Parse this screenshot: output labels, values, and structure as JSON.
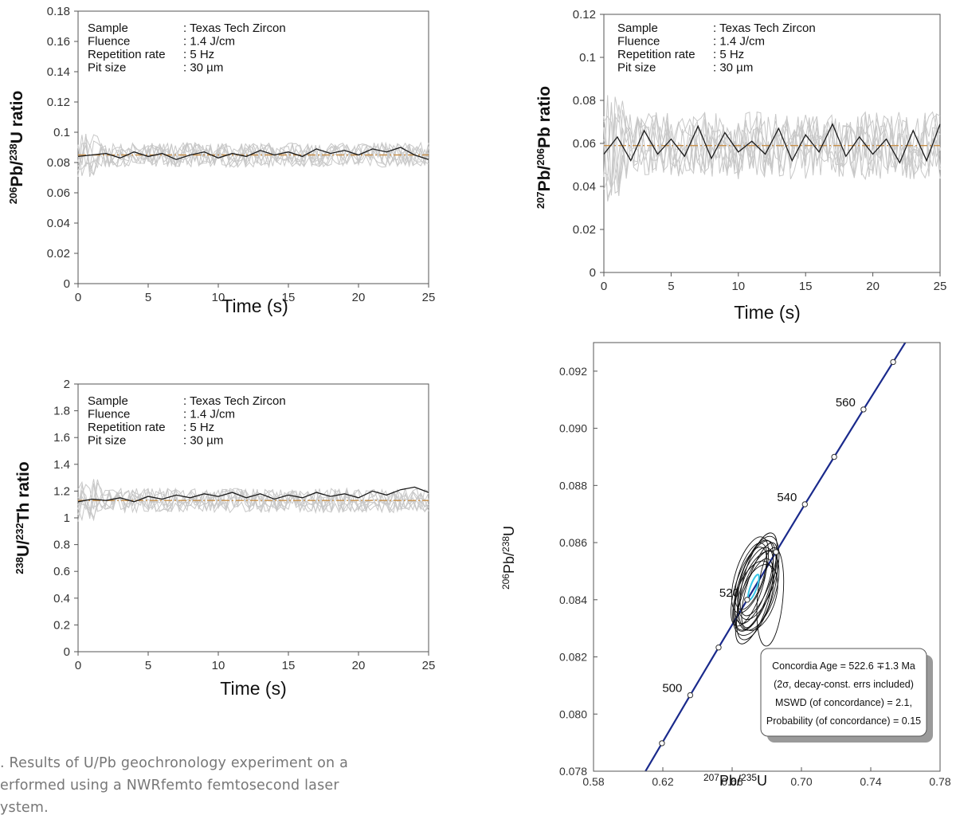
{
  "caption": {
    "lines": [
      ". Results of U/Pb geochronology experiment on a",
      "erformed using a NWRfemto femtosecond laser",
      "ystem."
    ]
  },
  "chart_data": [
    {
      "id": "pb206_u238",
      "type": "line",
      "ylabel": {
        "pre": "206",
        "a": "Pb/",
        "sup": "238",
        "b": "U ratio"
      },
      "xlabel": "Time (s)",
      "xlim": [
        0,
        25
      ],
      "ylim": [
        0,
        0.18
      ],
      "xticks": [
        "0",
        "5",
        "10",
        "15",
        "20",
        "25"
      ],
      "yticks": [
        "0",
        "0.02",
        "0.04",
        "0.06",
        "0.08",
        "0.1",
        "0.12",
        "0.14",
        "0.16",
        "0.18"
      ],
      "reference_value": 0.085,
      "mean_series": {
        "x": [
          0,
          1,
          2,
          3,
          4,
          5,
          6,
          7,
          8,
          9,
          10,
          11,
          12,
          13,
          14,
          15,
          16,
          17,
          18,
          19,
          20,
          21,
          22,
          23,
          24,
          25
        ],
        "y": [
          0.084,
          0.085,
          0.086,
          0.083,
          0.087,
          0.084,
          0.086,
          0.082,
          0.085,
          0.087,
          0.083,
          0.086,
          0.084,
          0.088,
          0.085,
          0.087,
          0.084,
          0.089,
          0.086,
          0.088,
          0.085,
          0.089,
          0.087,
          0.09,
          0.085,
          0.082
        ]
      },
      "info": {
        "rows": [
          {
            "key": "Sample",
            "value": ": Texas Tech Zircon"
          },
          {
            "key": "Fluence",
            "value": ": 1.4 J/cm"
          },
          {
            "key": "Repetition rate",
            "value": ": 5 Hz"
          },
          {
            "key": "Pit size",
            "value": ": 30 µm"
          }
        ]
      },
      "colors": {
        "traces": "#c8c8c8",
        "mean": "#1a1a1a",
        "reference": "#c8904a"
      }
    },
    {
      "id": "pb207_pb206",
      "type": "line",
      "ylabel": {
        "pre": "207",
        "a": "Pb/",
        "sup": "206",
        "b": "Pb ratio"
      },
      "xlabel": "Time (s)",
      "xlim": [
        0,
        25
      ],
      "ylim": [
        0,
        0.12
      ],
      "xticks": [
        "0",
        "5",
        "10",
        "15",
        "20",
        "25"
      ],
      "yticks": [
        "0",
        "0.02",
        "0.04",
        "0.06",
        "0.08",
        "0.1",
        "0.12"
      ],
      "reference_value": 0.059,
      "mean_series": {
        "x": [
          0,
          1,
          2,
          3,
          4,
          5,
          6,
          7,
          8,
          9,
          10,
          11,
          12,
          13,
          14,
          15,
          16,
          17,
          18,
          19,
          20,
          21,
          22,
          23,
          24,
          25
        ],
        "y": [
          0.055,
          0.063,
          0.052,
          0.066,
          0.055,
          0.062,
          0.054,
          0.068,
          0.053,
          0.065,
          0.056,
          0.061,
          0.055,
          0.067,
          0.052,
          0.064,
          0.056,
          0.069,
          0.054,
          0.063,
          0.055,
          0.062,
          0.051,
          0.066,
          0.052,
          0.069
        ]
      },
      "info": {
        "rows": [
          {
            "key": "Sample",
            "value": ": Texas Tech Zircon"
          },
          {
            "key": "Fluence",
            "value": ": 1.4 J/cm"
          },
          {
            "key": "Repetition rate",
            "value": ": 5 Hz"
          },
          {
            "key": "Pit size",
            "value": ": 30 µm"
          }
        ]
      },
      "colors": {
        "traces": "#c8c8c8",
        "mean": "#1a1a1a",
        "reference": "#c8904a"
      }
    },
    {
      "id": "u238_th232",
      "type": "line",
      "ylabel": {
        "pre": "238",
        "a": "U/",
        "sup": "232",
        "b": "Th ratio"
      },
      "xlabel": "Time (s)",
      "xlim": [
        0,
        25
      ],
      "ylim": [
        0,
        2
      ],
      "xticks": [
        "0",
        "5",
        "10",
        "15",
        "20",
        "25"
      ],
      "yticks": [
        "0",
        "0.2",
        "0.4",
        "0.6",
        "0.8",
        "1",
        "1.2",
        "1.4",
        "1.6",
        "1.8",
        "2"
      ],
      "reference_value": 1.13,
      "mean_series": {
        "x": [
          0,
          1,
          2,
          3,
          4,
          5,
          6,
          7,
          8,
          9,
          10,
          11,
          12,
          13,
          14,
          15,
          16,
          17,
          18,
          19,
          20,
          21,
          22,
          23,
          24,
          25
        ],
        "y": [
          1.12,
          1.14,
          1.13,
          1.15,
          1.12,
          1.16,
          1.14,
          1.17,
          1.15,
          1.18,
          1.16,
          1.19,
          1.15,
          1.18,
          1.14,
          1.17,
          1.15,
          1.19,
          1.16,
          1.18,
          1.15,
          1.2,
          1.17,
          1.21,
          1.23,
          1.19
        ]
      },
      "info": {
        "rows": [
          {
            "key": "Sample",
            "value": ": Texas Tech Zircon"
          },
          {
            "key": "Fluence",
            "value": ": 1.4 J/cm"
          },
          {
            "key": "Repetition rate",
            "value": ": 5 Hz"
          },
          {
            "key": "Pit size",
            "value": ": 30 µm"
          }
        ]
      },
      "colors": {
        "traces": "#c8c8c8",
        "mean": "#1a1a1a",
        "reference": "#c8904a"
      }
    },
    {
      "id": "concordia",
      "type": "scatter",
      "subtype": "concordia",
      "xlabel": {
        "sup": "207",
        "a": "Pb/",
        "sup2": "235",
        "b": "U"
      },
      "ylabel": {
        "sup": "206",
        "a": "Pb/",
        "sup2": "238",
        "b": "U"
      },
      "xlim": [
        0.58,
        0.78
      ],
      "ylim": [
        0.078,
        0.093
      ],
      "xticks": [
        "0.58",
        "0.62",
        "0.66",
        "0.70",
        "0.74",
        "0.78"
      ],
      "yticks": [
        "0.078",
        "0.080",
        "0.082",
        "0.084",
        "0.086",
        "0.088",
        "0.090",
        "0.092"
      ],
      "concordia_points": [
        {
          "x": 0.6195,
          "y": 0.07898,
          "label": ""
        },
        {
          "x": 0.6358,
          "y": 0.08066,
          "label": "500"
        },
        {
          "x": 0.6522,
          "y": 0.08233,
          "label": ""
        },
        {
          "x": 0.6687,
          "y": 0.084,
          "label": "520"
        },
        {
          "x": 0.6853,
          "y": 0.08567,
          "label": ""
        },
        {
          "x": 0.702,
          "y": 0.08734,
          "label": "540"
        },
        {
          "x": 0.7189,
          "y": 0.089,
          "label": ""
        },
        {
          "x": 0.7358,
          "y": 0.09066,
          "label": "560"
        },
        {
          "x": 0.7529,
          "y": 0.09232,
          "label": ""
        }
      ],
      "concordia_age": {
        "lines": [
          "Concordia Age = 522.6 ∓1.3 Ma",
          "(2σ, decay-const. errs included)",
          "MSWD (of concordance) = 2.1,",
          "Probability (of concordance) = 0.15"
        ]
      },
      "colors": {
        "curve": "#1a2a8c",
        "ellipses": "#111111",
        "age_ellipse": "#35c7e8"
      }
    }
  ]
}
